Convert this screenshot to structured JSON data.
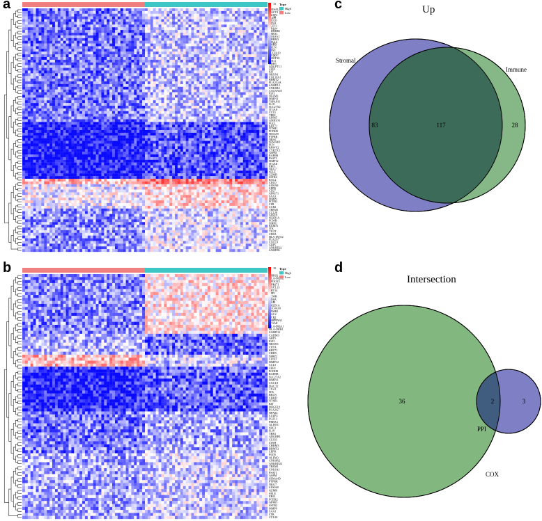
{
  "panels": {
    "a": {
      "letter": "a",
      "legend": {
        "title": "Type",
        "items": [
          {
            "label": "High",
            "color": "#3ec6c6"
          },
          {
            "label": "Low",
            "color": "#f08080"
          }
        ],
        "scale_ticks": [
          "15",
          "10",
          "5",
          "0",
          "-5"
        ]
      },
      "genes": [
        "SHISAL2B",
        "DACT2",
        "LUZP2",
        "PLD5",
        "CLIC6",
        "LY6H",
        "FGF13",
        "NPAS4",
        "ADGRB1",
        "PRRX1",
        "COL8A1",
        "CHRM3",
        "TTLL6",
        "CHRD",
        "RELN",
        "GPR1",
        "SLC4A10",
        "ALDOC",
        "MEGF10",
        "SHC3",
        "CDH5",
        "ANGPTL1",
        "ZEB1",
        "KIT",
        "NRXN1",
        "COL19A1",
        "BHMT2",
        "PLA2G4A",
        "SAMD12",
        "CNKSR2",
        "CACNA1E",
        "IGF1",
        "OLFM3",
        "MMP11",
        "TSPAN11",
        "IL18",
        "SLC27A2",
        "ITGA8",
        "CCL5",
        "TBR1",
        "GPR65",
        "AMIGO3",
        "FGL1",
        "KRT71",
        "NTSR1",
        "PCDH9",
        "HOXA9",
        "PTPRR",
        "NRAC",
        "SEMA4D",
        "PLN",
        "RPS4Y2",
        "CYP27C1",
        "ASPM",
        "RAB9B",
        "PSAT1",
        "MMP12",
        "ITGAE",
        "EBI3",
        "NKG7",
        "SELE",
        "GZMB",
        "SSTR2",
        "RAC2",
        "CD1D",
        "S100A8",
        "LEPR",
        "CD27",
        "GPR171",
        "SAA1",
        "MMP9",
        "FCER2",
        "LTB",
        "CCR2",
        "TREM1",
        "CCL20",
        "GPR18",
        "SH2D1A",
        "FCMR",
        "SIRPG",
        "KLRD1",
        "ITK",
        "TIGIT",
        "CD8A",
        "HLA-DQA2",
        "PLA2G7",
        "CXCL9",
        "GBP5",
        "ANKRD22",
        "SAMD9L"
      ]
    },
    "b": {
      "letter": "b",
      "legend": {
        "title": "Type",
        "items": [
          {
            "label": "High",
            "color": "#3ec6c6"
          },
          {
            "label": "Low",
            "color": "#f08080"
          }
        ],
        "scale_ticks": [
          "10",
          "5",
          "0",
          "-5"
        ]
      },
      "genes": [
        "DHRS2",
        "HLA-DQA2",
        "SPOCK3",
        "GPR171",
        "CXCL13",
        "KRT14",
        "SPP1",
        "FCMR",
        "CD8A",
        "BGN",
        "SH2D1A",
        "SLC4A10",
        "PAMR1",
        "RAC2",
        "CCR2",
        "SERPINA1",
        "ITGAE",
        "HLA-DQA1",
        "HLA-DRB1",
        "SAMD12",
        "CADM3",
        "GBP5",
        "IGF1",
        "NRXN1",
        "CIITA",
        "KRT71",
        "CDH5",
        "SFRP2",
        "CD1D",
        "MMP12",
        "CCL5",
        "ZEB1",
        "PCDH9",
        "RAB9B",
        "SLC27A2",
        "MMP11",
        "CXCL9",
        "DACT2",
        "TIGIT",
        "ITK",
        "RELN",
        "CHRD",
        "NTSR1",
        "KIT",
        "MEGF10",
        "PLA2G7",
        "NPAS4",
        "LUZP2",
        "FGF13",
        "PRRX1",
        "ALDOC",
        "SHC3",
        "IL18",
        "TBR1",
        "ADGRB1",
        "CLIC6",
        "LY6H",
        "CHRM3",
        "BHMT2",
        "LEPR",
        "PLD5",
        "OLFM3",
        "CNKSR2",
        "ANKRD22",
        "TREM1",
        "COL8A1",
        "PSAT1",
        "ASPM",
        "SEMA4D",
        "PTPRR",
        "NKG7",
        "S100A8",
        "GZMB",
        "SELE",
        "EBI3",
        "FCER2",
        "GPR65",
        "SSTR2",
        "MMP9",
        "SAA1",
        "LTB",
        "CCL20"
      ]
    },
    "c": {
      "letter": "c",
      "title": "Up",
      "sets": [
        {
          "name": "Stromal",
          "only": "83",
          "color": "#7f7fc6"
        },
        {
          "name": "Immune",
          "only": "28",
          "color": "#7fb37f"
        }
      ],
      "intersection": "117",
      "intersection_color": "#3d6b5a"
    },
    "d": {
      "letter": "d",
      "title": "Intersection",
      "sets": [
        {
          "name": "COX",
          "only": "36",
          "color": "#82b77f"
        },
        {
          "name": "PPI",
          "only": "3",
          "color": "#7f7fc6"
        }
      ],
      "intersection": "2",
      "intersection_color": "#405c7f"
    }
  }
}
